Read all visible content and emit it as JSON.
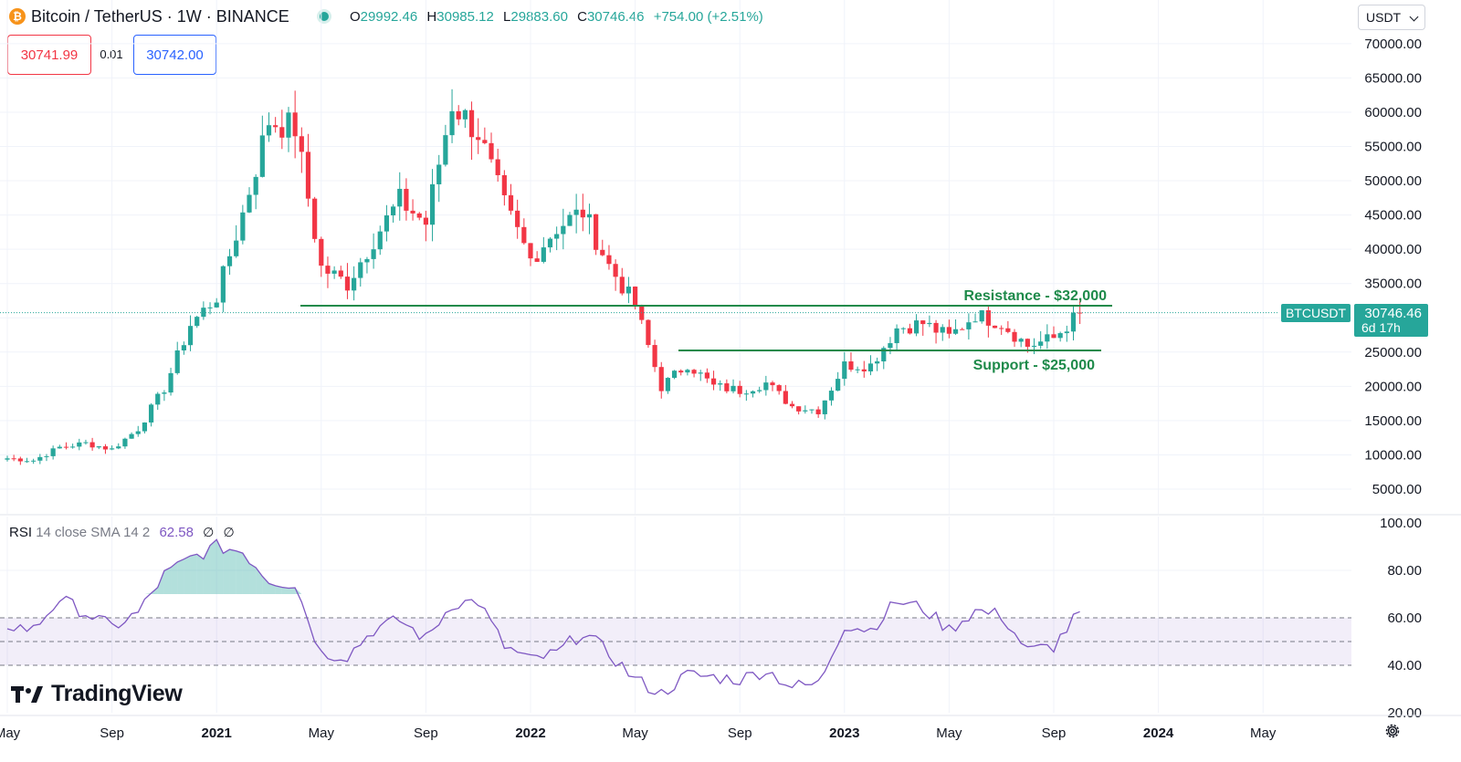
{
  "header": {
    "coin_icon": "bitcoin-icon",
    "title": "Bitcoin / TetherUS · 1W · BINANCE",
    "ohlc": {
      "o_label": "O",
      "o": "29992.46",
      "h_label": "H",
      "h": "30985.12",
      "l_label": "L",
      "l": "29883.60",
      "c_label": "C",
      "c": "30746.46",
      "change": "+754.00 (+2.51%)"
    },
    "bid": "30741.99",
    "spread": "0.01",
    "ask": "30742.00",
    "currency": "USDT"
  },
  "colors": {
    "up": "#26a69a",
    "down": "#f23645",
    "rsi": "#7e57c2",
    "annotation": "#1e8a4a"
  },
  "price_axis": {
    "ticks": [
      "70000.00",
      "65000.00",
      "60000.00",
      "55000.00",
      "50000.00",
      "45000.00",
      "40000.00",
      "35000.00",
      "25000.00",
      "20000.00",
      "15000.00",
      "10000.00",
      "5000.00"
    ],
    "last_price_symbol": "BTCUSDT",
    "last_price": "30746.46",
    "countdown": "6d 17h"
  },
  "rsi_axis": {
    "ticks": [
      "100.00",
      "80.00",
      "60.00",
      "40.00",
      "20.00"
    ]
  },
  "time_axis": {
    "labels": [
      "May",
      "Sep",
      "2021",
      "May",
      "Sep",
      "2022",
      "May",
      "Sep",
      "2023",
      "May",
      "Sep",
      "2024",
      "May"
    ]
  },
  "annotations": {
    "resistance": "Resistance - $32,000",
    "support": "Support - $25,000"
  },
  "rsi_legend": {
    "name": "RSI",
    "params": "14 close SMA 14 2",
    "value": "62.58",
    "icon1": "∅",
    "icon2": "∅"
  },
  "branding": {
    "logo_text": "TradingView"
  },
  "chart_data": {
    "type": "candlestick",
    "title": "Bitcoin / TetherUS · 1W · BINANCE",
    "interval": "1W",
    "x_range": [
      "2020-05",
      "2024-05"
    ],
    "ylim": [
      0,
      72000
    ],
    "grid": true,
    "approx_closes_by_month": [
      [
        "2020-05",
        9500
      ],
      [
        "2020-06",
        9200
      ],
      [
        "2020-07",
        11100
      ],
      [
        "2020-08",
        11700
      ],
      [
        "2020-09",
        10800
      ],
      [
        "2020-10",
        13800
      ],
      [
        "2020-11",
        19700
      ],
      [
        "2020-12",
        29000
      ],
      [
        "2021-01",
        33100
      ],
      [
        "2021-02",
        45200
      ],
      [
        "2021-03",
        58800
      ],
      [
        "2021-04",
        57700
      ],
      [
        "2021-05",
        37300
      ],
      [
        "2021-06",
        35000
      ],
      [
        "2021-07",
        41500
      ],
      [
        "2021-08",
        47100
      ],
      [
        "2021-09",
        43800
      ],
      [
        "2021-10",
        61300
      ],
      [
        "2021-11",
        57000
      ],
      [
        "2021-12",
        46300
      ],
      [
        "2022-01",
        38500
      ],
      [
        "2022-02",
        43200
      ],
      [
        "2022-03",
        45500
      ],
      [
        "2022-04",
        37600
      ],
      [
        "2022-05",
        31800
      ],
      [
        "2022-06",
        19900
      ],
      [
        "2022-07",
        23300
      ],
      [
        "2022-08",
        20000
      ],
      [
        "2022-09",
        19400
      ],
      [
        "2022-10",
        20500
      ],
      [
        "2022-11",
        17100
      ],
      [
        "2022-12",
        16500
      ],
      [
        "2023-01",
        23100
      ],
      [
        "2023-02",
        23100
      ],
      [
        "2023-03",
        28500
      ],
      [
        "2023-04",
        29200
      ],
      [
        "2023-05",
        27200
      ],
      [
        "2023-06",
        30500
      ],
      [
        "2023-07",
        29200
      ],
      [
        "2023-08",
        25900
      ],
      [
        "2023-09",
        27000
      ],
      [
        "2023-10",
        30746
      ]
    ],
    "horizontal_levels": [
      {
        "label": "Resistance - $32,000",
        "value": 32000
      },
      {
        "label": "Support - $25,000",
        "value": 25000
      }
    ],
    "rsi": {
      "name": "RSI 14 close SMA 14 2",
      "last": 62.58,
      "band": [
        40,
        60
      ],
      "ylim": [
        20,
        100
      ],
      "approx_by_month": [
        [
          "2020-05",
          57
        ],
        [
          "2020-06",
          55
        ],
        [
          "2020-07",
          68
        ],
        [
          "2020-08",
          62
        ],
        [
          "2020-09",
          56
        ],
        [
          "2020-10",
          62
        ],
        [
          "2020-11",
          78
        ],
        [
          "2020-12",
          85
        ],
        [
          "2021-01",
          90
        ],
        [
          "2021-02",
          88
        ],
        [
          "2021-03",
          76
        ],
        [
          "2021-04",
          74
        ],
        [
          "2021-05",
          45
        ],
        [
          "2021-06",
          44
        ],
        [
          "2021-07",
          55
        ],
        [
          "2021-08",
          59
        ],
        [
          "2021-09",
          51
        ],
        [
          "2021-10",
          66
        ],
        [
          "2021-11",
          67
        ],
        [
          "2021-12",
          48
        ],
        [
          "2022-01",
          42
        ],
        [
          "2022-02",
          45
        ],
        [
          "2022-03",
          54
        ],
        [
          "2022-04",
          45
        ],
        [
          "2022-05",
          34
        ],
        [
          "2022-06",
          28
        ],
        [
          "2022-07",
          36
        ],
        [
          "2022-08",
          35
        ],
        [
          "2022-09",
          34
        ],
        [
          "2022-10",
          38
        ],
        [
          "2022-11",
          31
        ],
        [
          "2022-12",
          32
        ],
        [
          "2023-01",
          57
        ],
        [
          "2023-02",
          55
        ],
        [
          "2023-03",
          67
        ],
        [
          "2023-04",
          64
        ],
        [
          "2023-05",
          55
        ],
        [
          "2023-06",
          63
        ],
        [
          "2023-07",
          61
        ],
        [
          "2023-08",
          46
        ],
        [
          "2023-09",
          48
        ],
        [
          "2023-10",
          62.58
        ]
      ]
    }
  }
}
